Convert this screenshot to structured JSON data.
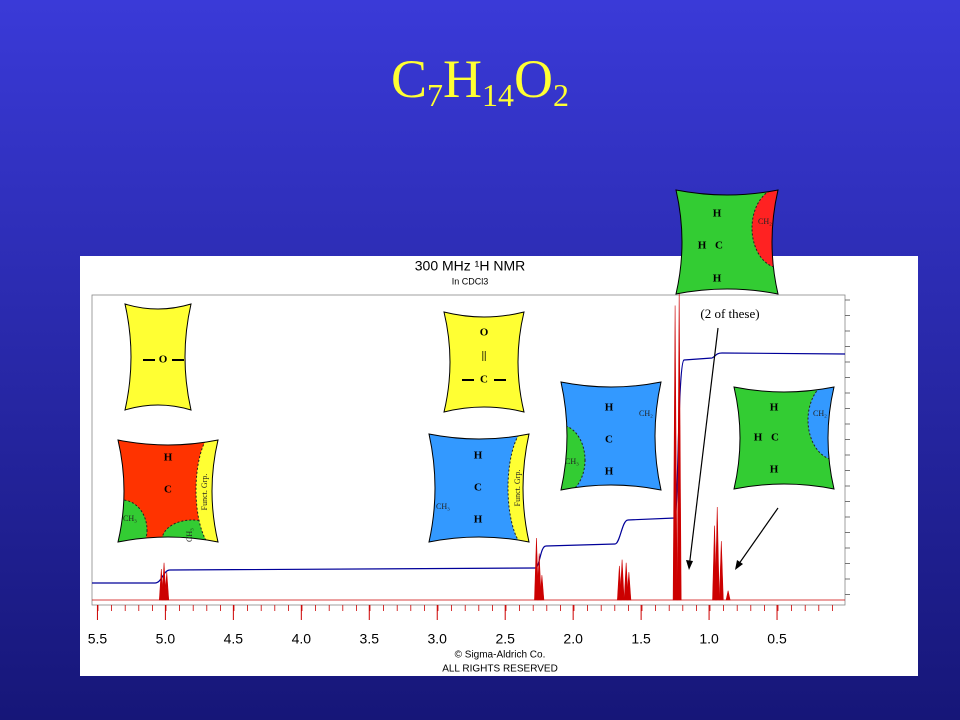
{
  "title": [
    "C",
    "7",
    "H",
    "14",
    "O",
    "2"
  ],
  "spectrum": {
    "title": "300 MHz ¹H NMR",
    "solvent": "In CDCl3",
    "xlim": [
      5.54,
      0.0
    ],
    "xticks": [
      5.5,
      {
        "value": 5.0,
        "label": "5.0"
      },
      4.5,
      {
        "value": 4.0,
        "label": "4.0"
      },
      3.5,
      {
        "value": 3.0,
        "label": "3.0"
      },
      2.5,
      {
        "value": 2.0,
        "label": "2.0"
      },
      1.5,
      {
        "value": 1.0,
        "label": "1.0"
      },
      0.5
    ],
    "peaks": [
      {
        "ppm": 5.03,
        "height": 10
      },
      {
        "ppm": 5.01,
        "height": 12
      },
      {
        "ppm": 4.99,
        "height": 9
      },
      {
        "ppm": 2.27,
        "height": 20
      },
      {
        "ppm": 2.25,
        "height": 15
      },
      {
        "ppm": 2.23,
        "height": 8
      },
      {
        "ppm": 1.66,
        "height": 11
      },
      {
        "ppm": 1.64,
        "height": 13
      },
      {
        "ppm": 1.61,
        "height": 12
      },
      {
        "ppm": 1.59,
        "height": 9
      },
      {
        "ppm": 1.25,
        "height": 95
      },
      {
        "ppm": 1.22,
        "height": 100
      },
      {
        "ppm": 0.96,
        "height": 24
      },
      {
        "ppm": 0.94,
        "height": 30
      },
      {
        "ppm": 0.91,
        "height": 19
      },
      {
        "ppm": 0.86,
        "height": 3
      }
    ],
    "copyright": "© Sigma-Aldrich Co.",
    "rights": "ALL RIGHTS RESERVED"
  },
  "fragments": [
    {
      "texts": [
        "O"
      ]
    },
    {
      "texts": [
        "O",
        "||",
        "C"
      ]
    },
    {
      "texts": [
        "H",
        "C",
        "CH₃",
        "Funct. Grp.",
        "CH₃"
      ]
    },
    {
      "texts": [
        "H",
        "C",
        "H",
        "CH₃",
        "Funct. Grp."
      ]
    },
    {
      "texts": [
        "H",
        "C",
        "H",
        "CH₂",
        "CH₃"
      ]
    },
    {
      "texts": [
        "H",
        "H",
        "C",
        "H",
        "CH₂"
      ]
    },
    {
      "texts": [
        "H",
        "H",
        "C",
        "H",
        "CH₂"
      ]
    }
  ],
  "note": "(2 of these)"
}
